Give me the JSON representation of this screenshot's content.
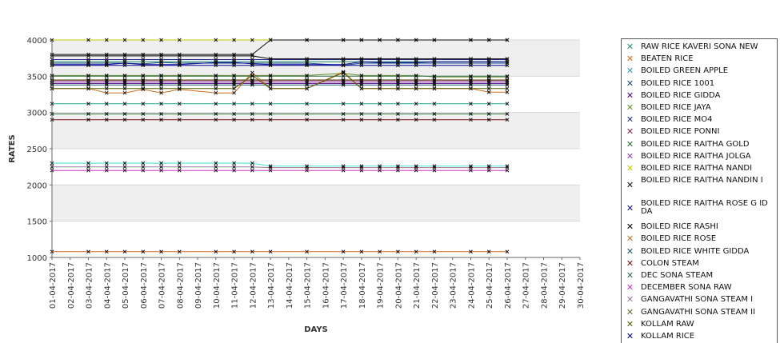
{
  "chart_data": {
    "type": "line",
    "title": "",
    "xlabel": "DAYS",
    "ylabel": "RATES",
    "ylim": [
      1000,
      4000
    ],
    "yticks": [
      1000,
      1500,
      2000,
      2500,
      3000,
      3500,
      4000
    ],
    "grid": "alternating horizontal bands",
    "legend_position": "right",
    "x": [
      "01-04-2017",
      "02-04-2017",
      "03-04-2017",
      "04-04-2017",
      "05-04-2017",
      "06-04-2017",
      "07-04-2017",
      "08-04-2017",
      "09-04-2017",
      "10-04-2017",
      "11-04-2017",
      "12-04-2017",
      "13-04-2017",
      "14-04-2017",
      "15-04-2017",
      "16-04-2017",
      "17-04-2017",
      "18-04-2017",
      "19-04-2017",
      "20-04-2017",
      "21-04-2017",
      "22-04-2017",
      "23-04-2017",
      "24-04-2017",
      "25-04-2017",
      "26-04-2017",
      "27-04-2017",
      "28-04-2017",
      "29-04-2017",
      "30-04-2017"
    ],
    "series": [
      {
        "name": " RAW RICE KAVERI SONA NEW",
        "color": "#1f8f6f",
        "values": [
          3700,
          null,
          3700,
          3700,
          3700,
          3700,
          3700,
          3700,
          null,
          3700,
          3700,
          3700,
          3700,
          null,
          3700,
          null,
          3700,
          3700,
          3700,
          3700,
          3700,
          3700,
          null,
          3700,
          3700,
          3700,
          null,
          null,
          null,
          null
        ]
      },
      {
        "name": "BEATEN RICE",
        "color": "#d2691e",
        "values": [
          1080,
          null,
          1080,
          1080,
          1080,
          1080,
          1080,
          1080,
          null,
          1080,
          1080,
          1080,
          1080,
          null,
          1080,
          null,
          1080,
          1080,
          1080,
          1080,
          1080,
          1080,
          null,
          1080,
          1080,
          1080,
          null,
          null,
          null,
          null
        ]
      },
      {
        "name": "BOILED GREEN APPLE",
        "color": "#2aa198",
        "values": [
          3120,
          null,
          3120,
          3120,
          3120,
          3120,
          3120,
          3120,
          null,
          3120,
          3120,
          3120,
          3120,
          null,
          3120,
          null,
          3120,
          3120,
          3120,
          3120,
          3120,
          3120,
          null,
          3120,
          3120,
          3120,
          null,
          null,
          null,
          null
        ]
      },
      {
        "name": "BOILED RICE 1001",
        "color": "#1e4f8c",
        "values": [
          3680,
          null,
          3680,
          3680,
          3680,
          3670,
          3690,
          3680,
          null,
          3680,
          3680,
          3680,
          3680,
          null,
          3680,
          null,
          3650,
          3680,
          3680,
          3680,
          3680,
          3680,
          null,
          3680,
          3680,
          3680,
          null,
          null,
          null,
          null
        ]
      },
      {
        "name": "BOILED RICE GIDDA",
        "color": "#4b0082",
        "values": [
          3400,
          null,
          3400,
          3400,
          3400,
          3400,
          3400,
          3400,
          null,
          3400,
          3400,
          3400,
          3400,
          null,
          3400,
          null,
          3400,
          3400,
          3400,
          3400,
          3400,
          3400,
          null,
          3400,
          3400,
          3400,
          null,
          null,
          null,
          null
        ]
      },
      {
        "name": "BOILED RICE JAYA",
        "color": "#6b8e23",
        "values": [
          3510,
          null,
          3510,
          3510,
          3510,
          3510,
          3510,
          3510,
          null,
          3510,
          3510,
          3510,
          3510,
          null,
          3510,
          null,
          3540,
          3510,
          3510,
          3510,
          3510,
          3490,
          null,
          3490,
          3490,
          3490,
          null,
          null,
          null,
          null
        ]
      },
      {
        "name": "BOILED RICE MO4",
        "color": "#2b2b8c",
        "values": [
          3730,
          null,
          3730,
          3730,
          3730,
          3730,
          3730,
          3730,
          null,
          3730,
          3730,
          3730,
          3730,
          null,
          3730,
          null,
          3730,
          3730,
          3730,
          3730,
          3730,
          3730,
          null,
          3730,
          3730,
          3730,
          null,
          null,
          null,
          null
        ]
      },
      {
        "name": "BOILED RICE PONNI",
        "color": "#8b2252",
        "values": [
          3440,
          null,
          3440,
          3440,
          3440,
          3440,
          3440,
          3440,
          null,
          3440,
          3440,
          3440,
          3440,
          null,
          3440,
          null,
          3440,
          3440,
          3440,
          3440,
          3440,
          3440,
          null,
          3440,
          3440,
          3440,
          null,
          null,
          null,
          null
        ]
      },
      {
        "name": "BOILED RICE RAITHA GOLD",
        "color": "#2e6b2e",
        "values": [
          2980,
          null,
          2980,
          2980,
          2980,
          2980,
          2980,
          2980,
          null,
          2980,
          2980,
          2980,
          2980,
          null,
          2980,
          null,
          2980,
          2980,
          2980,
          2980,
          2980,
          2980,
          null,
          2980,
          2980,
          2980,
          null,
          null,
          null,
          null
        ]
      },
      {
        "name": "BOILED RICE RAITHA JOLGA",
        "color": "#8e44ad",
        "values": [
          3420,
          null,
          3420,
          3420,
          3420,
          3420,
          3420,
          3420,
          null,
          3420,
          3420,
          3420,
          3420,
          null,
          3420,
          null,
          3420,
          3420,
          3420,
          3420,
          3420,
          3420,
          null,
          3420,
          3420,
          3420,
          null,
          null,
          null,
          null
        ]
      },
      {
        "name": "BOILED RICE RAITHA NANDI",
        "color": "#c8c800",
        "values": [
          4000,
          null,
          4000,
          4000,
          4000,
          4000,
          4000,
          4000,
          null,
          4000,
          4000,
          4000,
          4000,
          null,
          4000,
          null,
          4000,
          4000,
          4000,
          4000,
          4000,
          4000,
          null,
          4000,
          4000,
          4000,
          null,
          null,
          null,
          null
        ]
      },
      {
        "name": "BOILED RICE RAITHA NANDIN I",
        "color": "#111111",
        "values": [
          3800,
          null,
          3800,
          3800,
          3800,
          3800,
          3800,
          3800,
          null,
          3800,
          3800,
          3800,
          4000,
          null,
          4000,
          null,
          4000,
          4000,
          4000,
          4000,
          4000,
          4000,
          null,
          4000,
          4000,
          4000,
          null,
          null,
          null,
          null
        ]
      },
      {
        "name": "BOILED RICE RAITHA ROSE G IDDA",
        "color": "#1010a0",
        "values": [
          3660,
          null,
          3660,
          3660,
          3680,
          3660,
          3660,
          3660,
          null,
          3690,
          3690,
          3670,
          3660,
          null,
          3660,
          null,
          3660,
          3700,
          3690,
          3690,
          3690,
          3700,
          null,
          3700,
          3700,
          3700,
          null,
          null,
          null,
          null
        ]
      },
      {
        "name": "BOILED RICE RASHI",
        "color": "#000000",
        "values": [
          3780,
          null,
          3780,
          3780,
          3780,
          3780,
          3780,
          3780,
          null,
          3780,
          3780,
          3780,
          3740,
          null,
          3740,
          null,
          3740,
          3740,
          3740,
          3740,
          3740,
          3740,
          null,
          3740,
          3740,
          3740,
          null,
          null,
          null,
          null
        ]
      },
      {
        "name": "BOILED RICE ROSE",
        "color": "#c87020",
        "values": [
          3330,
          null,
          3330,
          3270,
          3270,
          3320,
          3270,
          3320,
          null,
          3270,
          3270,
          3550,
          3330,
          null,
          3330,
          null,
          3560,
          3330,
          3330,
          3330,
          3330,
          3330,
          null,
          3330,
          3280,
          3280,
          null,
          null,
          null,
          null
        ]
      },
      {
        "name": "BOILED RICE WHITE GIDDA",
        "color": "#1a5a6a",
        "values": [
          3380,
          null,
          3380,
          3380,
          3380,
          3380,
          3380,
          3380,
          null,
          3380,
          3380,
          3380,
          3380,
          null,
          3380,
          null,
          3380,
          3380,
          3380,
          3380,
          3380,
          3380,
          null,
          3380,
          3380,
          3380,
          null,
          null,
          null,
          null
        ]
      },
      {
        "name": "COLON STEAM",
        "color": "#7a1010",
        "values": [
          2900,
          null,
          2900,
          2900,
          2900,
          2900,
          2900,
          2900,
          null,
          2900,
          2900,
          2900,
          2900,
          null,
          2900,
          null,
          2900,
          2900,
          2900,
          2900,
          2900,
          2900,
          null,
          2900,
          2900,
          2900,
          null,
          null,
          null,
          null
        ]
      },
      {
        "name": "DEC SONA STEAM",
        "color": "#2f6f4f",
        "values": [
          3500,
          null,
          3500,
          3500,
          3500,
          3500,
          3500,
          3500,
          null,
          3500,
          3500,
          3500,
          3500,
          null,
          3500,
          null,
          3500,
          3500,
          3500,
          3500,
          3500,
          3500,
          null,
          3500,
          3500,
          3500,
          null,
          null,
          null,
          null
        ]
      },
      {
        "name": "DECEMBER SONA RAW",
        "color": "#cc33cc",
        "values": [
          2200,
          null,
          2200,
          2200,
          2200,
          2200,
          2200,
          2200,
          null,
          2200,
          2200,
          2200,
          2200,
          null,
          2200,
          null,
          2200,
          2200,
          2200,
          2200,
          2200,
          2200,
          null,
          2200,
          2200,
          2200,
          null,
          null,
          null,
          null
        ]
      },
      {
        "name": "GANGAVATHI SONA STEAM I",
        "color": "#9a7a9a",
        "values": [
          2250,
          null,
          2250,
          2250,
          2250,
          2250,
          2250,
          2250,
          null,
          2250,
          2250,
          2250,
          2240,
          null,
          2240,
          null,
          2240,
          2240,
          2240,
          2240,
          2240,
          2240,
          null,
          2240,
          2240,
          2240,
          null,
          null,
          null,
          null
        ]
      },
      {
        "name": "GANGAVATHI SONA STEAM II",
        "color": "#6b6b2f",
        "values": [
          3450,
          null,
          3450,
          3450,
          3450,
          3450,
          3450,
          3450,
          null,
          3450,
          3450,
          3450,
          3450,
          null,
          3450,
          null,
          3450,
          3450,
          3450,
          3450,
          3450,
          3450,
          null,
          3450,
          3450,
          3450,
          null,
          null,
          null,
          null
        ]
      },
      {
        "name": "KOLLAM RAW",
        "color": "#5a5a00",
        "values": [
          3330,
          null,
          3330,
          3330,
          3330,
          3330,
          3330,
          3330,
          null,
          3330,
          3330,
          3510,
          3330,
          null,
          3330,
          null,
          3550,
          3330,
          3330,
          3330,
          3330,
          3330,
          null,
          3330,
          3330,
          3330,
          null,
          null,
          null,
          null
        ]
      },
      {
        "name": "KOLLAM RICE",
        "color": "#00008b",
        "values": [
          3650,
          null,
          3650,
          3650,
          3650,
          3650,
          3650,
          3650,
          null,
          3650,
          3650,
          3650,
          3650,
          null,
          3650,
          null,
          3650,
          3650,
          3650,
          3650,
          3650,
          3650,
          null,
          3650,
          3650,
          3650,
          null,
          null,
          null,
          null
        ]
      },
      {
        "name": "",
        "color": "#40e0d0",
        "values": [
          2300,
          null,
          2300,
          2300,
          2300,
          2300,
          2300,
          2300,
          null,
          2300,
          2300,
          2300,
          2260,
          null,
          2260,
          null,
          2260,
          2260,
          2260,
          2260,
          2260,
          2260,
          null,
          2260,
          2260,
          2260,
          null,
          null,
          null,
          null
        ]
      }
    ]
  }
}
